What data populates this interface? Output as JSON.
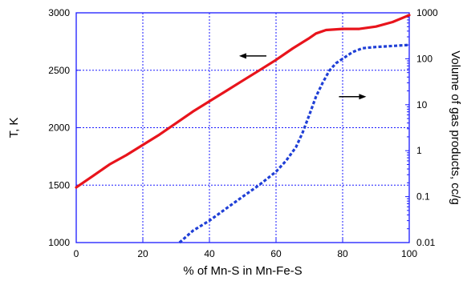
{
  "chart_data": {
    "type": "line",
    "title": "",
    "xlabel": "% of Mn-S in Mn-Fe-S",
    "ylabel": "T, K",
    "y2label": "Volume of gas products, cc/g",
    "xlim": [
      0,
      100
    ],
    "ylim": [
      1000,
      3000
    ],
    "y2lim": [
      0.01,
      1000
    ],
    "y2scale": "log",
    "grid": true,
    "x_ticks": [
      "0",
      "20",
      "40",
      "60",
      "80",
      "100"
    ],
    "y_ticks": [
      "1000",
      "1500",
      "2000",
      "2500",
      "3000"
    ],
    "y2_ticks": [
      "0.01",
      "0.1",
      "1",
      "10",
      "100",
      "1000"
    ],
    "series": [
      {
        "axis": "left",
        "color": "#e8141c",
        "style": "solid",
        "x": [
          0,
          5,
          10,
          15,
          20,
          25,
          30,
          35,
          40,
          45,
          50,
          55,
          60,
          65,
          70,
          72,
          75,
          80,
          85,
          90,
          95,
          100
        ],
        "y": [
          1480,
          1580,
          1680,
          1760,
          1850,
          1940,
          2040,
          2140,
          2230,
          2320,
          2410,
          2500,
          2590,
          2690,
          2780,
          2820,
          2850,
          2860,
          2860,
          2880,
          2920,
          2980
        ]
      },
      {
        "axis": "right",
        "color": "#1f3fd6",
        "style": "dashed",
        "x": [
          31,
          35,
          40,
          45,
          50,
          55,
          60,
          63,
          66,
          68,
          70,
          72,
          74,
          76,
          78,
          80,
          83,
          86,
          90,
          95,
          100
        ],
        "y": [
          0.01,
          0.018,
          0.03,
          0.055,
          0.1,
          0.18,
          0.35,
          0.6,
          1.2,
          2.5,
          6,
          15,
          30,
          55,
          80,
          100,
          140,
          170,
          180,
          190,
          200
        ]
      }
    ],
    "annotations": [
      {
        "type": "arrow",
        "direction": "left",
        "at": [
          53,
          2625
        ],
        "axis": "left"
      },
      {
        "type": "arrow",
        "direction": "right",
        "at": [
          83,
          15
        ],
        "axis": "right"
      }
    ]
  }
}
